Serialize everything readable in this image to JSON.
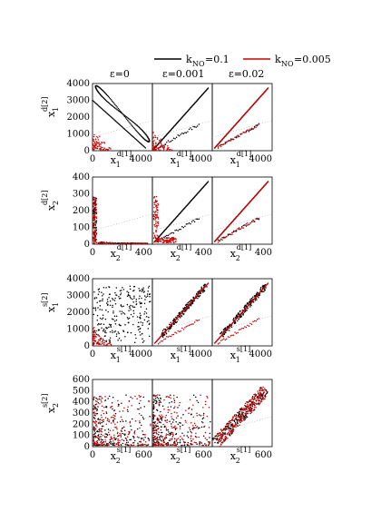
{
  "legend": {
    "items": [
      {
        "label_main": "k",
        "label_sub": "NO",
        "label_value": "=0.1",
        "color": "#000000"
      },
      {
        "label_main": "k",
        "label_sub": "NO",
        "label_value": "=0.005",
        "color": "#cc0000"
      }
    ]
  },
  "column_titles": [
    "ε=0",
    "ε=0.001",
    "ε=0.02"
  ],
  "colors": {
    "black_series": "#000000",
    "red_series": "#cc0000"
  },
  "chart_data": [
    {
      "type": "scatter",
      "row": 1,
      "xlabel": {
        "main": "x",
        "sub": "1",
        "sup": "d[1]"
      },
      "ylabel": {
        "main": "x",
        "sub": "1",
        "sup": "d[2]"
      },
      "yticks": [
        "0",
        "1000",
        "2000",
        "3000",
        "4000"
      ],
      "xticks_right": [
        "4000",
        "4000",
        "4000"
      ],
      "xlim": [
        0,
        4000
      ],
      "ylim": [
        0,
        4000
      ],
      "series": [
        {
          "color": "black",
          "panels": [
            "loop",
            "diag",
            "diag"
          ]
        },
        {
          "color": "red",
          "panels": [
            "corner",
            "corner",
            "diag"
          ]
        }
      ]
    },
    {
      "type": "scatter",
      "row": 2,
      "xlabel": {
        "main": "x",
        "sub": "2",
        "sup": "d[1]"
      },
      "ylabel": {
        "main": "x",
        "sub": "2",
        "sup": "d[2]"
      },
      "yticks": [
        "0",
        "100",
        "200",
        "300",
        "400"
      ],
      "xticks_right": [
        "400",
        "400",
        "400"
      ],
      "xlim": [
        0,
        400
      ],
      "ylim": [
        0,
        400
      ],
      "series": [
        {
          "color": "black",
          "panels": [
            "axis",
            "diag",
            "diag"
          ]
        },
        {
          "color": "red",
          "panels": [
            "axis",
            "spike",
            "diag"
          ]
        }
      ]
    },
    {
      "type": "scatter",
      "row": 3,
      "xlabel": {
        "main": "x",
        "sub": "1",
        "sup": "s[1]"
      },
      "ylabel": {
        "main": "x",
        "sub": "1",
        "sup": "s[2]"
      },
      "yticks": [
        "0",
        "1000",
        "2000",
        "3000",
        "4000"
      ],
      "xticks_right": [
        "4000",
        "4000",
        "4000"
      ],
      "xlim": [
        0,
        4000
      ],
      "ylim": [
        0,
        4000
      ],
      "series": [
        {
          "color": "black",
          "panels": [
            "cloud",
            "band",
            "band"
          ]
        },
        {
          "color": "red",
          "panels": [
            "corner",
            "diag",
            "diag"
          ]
        }
      ]
    },
    {
      "type": "scatter",
      "row": 4,
      "xlabel": {
        "main": "x",
        "sub": "2",
        "sup": "s[1]"
      },
      "ylabel": {
        "main": "x",
        "sub": "2",
        "sup": "s[2]"
      },
      "yticks": [
        "0",
        "100",
        "200",
        "300",
        "400",
        "500",
        "600"
      ],
      "xticks_right": [
        "600",
        "600",
        "600"
      ],
      "xlim": [
        0,
        600
      ],
      "ylim": [
        0,
        600
      ],
      "series": [
        {
          "color": "black",
          "panels": [
            "scatter",
            "scatter",
            "diagcloud"
          ]
        },
        {
          "color": "red",
          "panels": [
            "scatter",
            "scatter",
            "diagcloud"
          ]
        }
      ]
    }
  ]
}
